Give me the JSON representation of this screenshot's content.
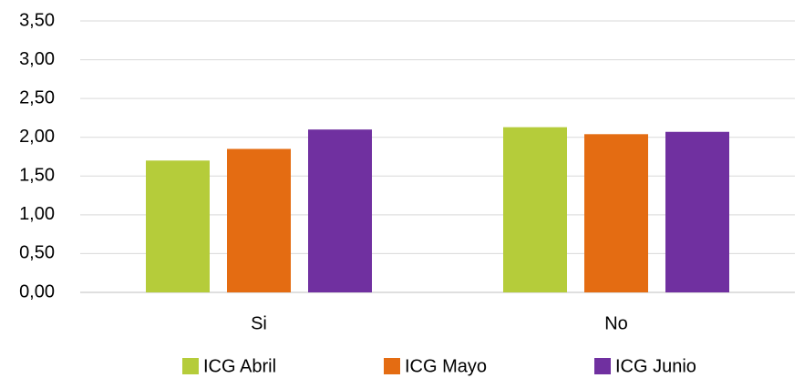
{
  "chart_data": {
    "type": "bar",
    "categories": [
      "Si",
      "No"
    ],
    "series": [
      {
        "name": "ICG Abril",
        "color": "#b5cc3a",
        "values": [
          1.7,
          2.13
        ]
      },
      {
        "name": "ICG Mayo",
        "color": "#e46c12",
        "values": [
          1.85,
          2.04
        ]
      },
      {
        "name": "ICG Junio",
        "color": "#7030a0",
        "values": [
          2.1,
          2.07
        ]
      }
    ],
    "ylim": [
      0,
      3.5
    ],
    "yticks": [
      {
        "value": 0,
        "label": "0,00"
      },
      {
        "value": 0.5,
        "label": "0,50"
      },
      {
        "value": 1,
        "label": "1,00"
      },
      {
        "value": 1.5,
        "label": "1,50"
      },
      {
        "value": 2,
        "label": "2,00"
      },
      {
        "value": 2.5,
        "label": "2,50"
      },
      {
        "value": 3,
        "label": "3,00"
      },
      {
        "value": 3.5,
        "label": "3,50"
      }
    ],
    "grid": true,
    "legend": "bottom"
  }
}
